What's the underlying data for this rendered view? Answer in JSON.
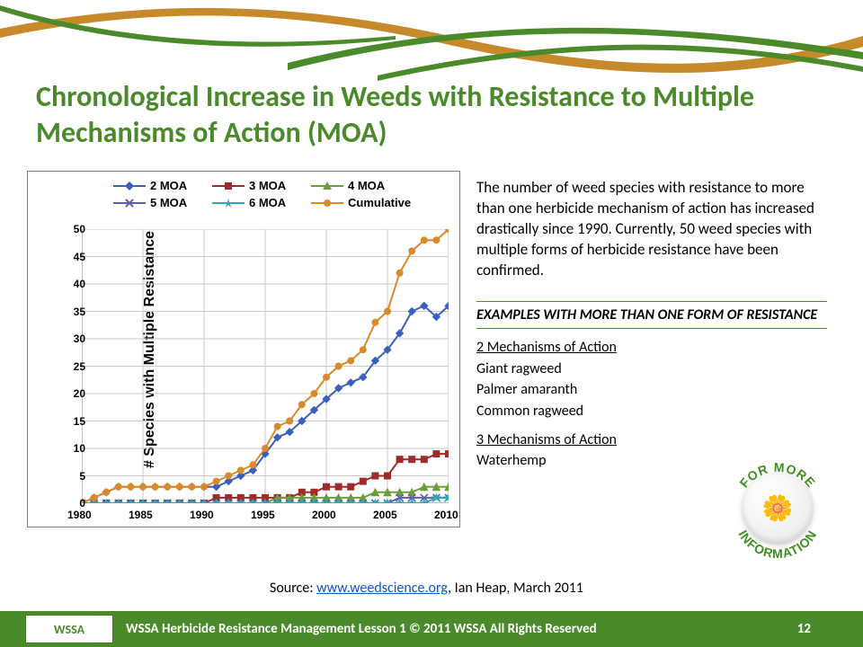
{
  "title": "Chronological Increase in Weeds with Resistance to Multiple Mechanisms of Action (MOA)",
  "chart": {
    "type": "line",
    "ylabel": "# Species with Multiple Resistance",
    "x_start": 1980,
    "x_end": 2010,
    "x_ticks": [
      1980,
      1985,
      1990,
      1995,
      2000,
      2005,
      2010
    ],
    "y_min": 0,
    "y_max": 50,
    "y_ticks": [
      0,
      5,
      10,
      15,
      20,
      25,
      30,
      35,
      40,
      45,
      50
    ],
    "legend_fontsize": 13,
    "label_fontsize": 16,
    "tick_fontsize": 12,
    "grid_color": "#c9c9c9",
    "axis_color": "#7f7f7f",
    "background_color": "#ffffff",
    "series": [
      {
        "name": "2 MOA",
        "marker": "diamond",
        "color": "#3a5fbf",
        "values": [
          0,
          1,
          2,
          3,
          3,
          3,
          3,
          3,
          3,
          3,
          3,
          3,
          4,
          5,
          6,
          9,
          12,
          13,
          15,
          17,
          19,
          21,
          22,
          23,
          26,
          28,
          31,
          35,
          36,
          34,
          36
        ]
      },
      {
        "name": "3 MOA",
        "marker": "square",
        "color": "#9e2a2a",
        "values": [
          0,
          0,
          0,
          0,
          0,
          0,
          0,
          0,
          0,
          0,
          0,
          1,
          1,
          1,
          1,
          1,
          1,
          1,
          2,
          2,
          3,
          3,
          3,
          4,
          5,
          5,
          8,
          8,
          8,
          9,
          9
        ]
      },
      {
        "name": "4 MOA",
        "marker": "triangle",
        "color": "#6b9e3a",
        "values": [
          0,
          0,
          0,
          0,
          0,
          0,
          0,
          0,
          0,
          0,
          0,
          0,
          0,
          0,
          0,
          0,
          1,
          1,
          1,
          1,
          1,
          1,
          1,
          1,
          2,
          2,
          2,
          2,
          3,
          3,
          3
        ]
      },
      {
        "name": "5 MOA",
        "marker": "x",
        "color": "#5f5fa6",
        "values": [
          0,
          0,
          0,
          0,
          0,
          0,
          0,
          0,
          0,
          0,
          0,
          0,
          0,
          0,
          0,
          0,
          0,
          0,
          0,
          0,
          0,
          0,
          0,
          0,
          0,
          0,
          1,
          1,
          1,
          1,
          1
        ]
      },
      {
        "name": "6 MOA",
        "marker": "star",
        "color": "#2fa8b0",
        "values": [
          0,
          0,
          0,
          0,
          0,
          0,
          0,
          0,
          0,
          0,
          0,
          0,
          0,
          0,
          0,
          0,
          0,
          0,
          0,
          0,
          0,
          0,
          0,
          0,
          0,
          0,
          0,
          0,
          0,
          1,
          1
        ]
      },
      {
        "name": "Cumulative",
        "marker": "circle",
        "color": "#d98a2b",
        "values": [
          0,
          1,
          2,
          3,
          3,
          3,
          3,
          3,
          3,
          3,
          3,
          4,
          5,
          6,
          7,
          10,
          14,
          15,
          18,
          20,
          23,
          25,
          26,
          28,
          33,
          35,
          42,
          46,
          48,
          48,
          50
        ]
      }
    ]
  },
  "body_paragraph": "The number of weed species with resistance to more than one herbicide mechanism of action has increased drastically since 1990. Currently, 50 weed species with multiple forms of herbicide resistance have been confirmed.",
  "examples_header": "Examples with more than one form of resistance",
  "examples": [
    {
      "heading": "2 Mechanisms of Action",
      "items": [
        "Giant ragweed",
        "Palmer amaranth",
        "Common ragweed"
      ]
    },
    {
      "heading": "3 Mechanisms of Action",
      "items": [
        "Waterhemp"
      ]
    }
  ],
  "badge": {
    "top": "FOR MORE",
    "bottom": "INFORMATION",
    "color": "#3e8e1f",
    "flower_emoji": "🌼"
  },
  "source_prefix": "Source: ",
  "source_link_text": "www.weedscience.org",
  "source_suffix": ", Ian Heap, March 2011",
  "footer": {
    "text": "WSSA Herbicide Resistance Management Lesson 1 © 2011 WSSA All Rights Reserved",
    "page": "12",
    "logo": "WSSA",
    "bg": "#4a8a2a"
  },
  "swoosh_colors": {
    "orange": "#c78a2a",
    "green": "#4a8a2a"
  }
}
